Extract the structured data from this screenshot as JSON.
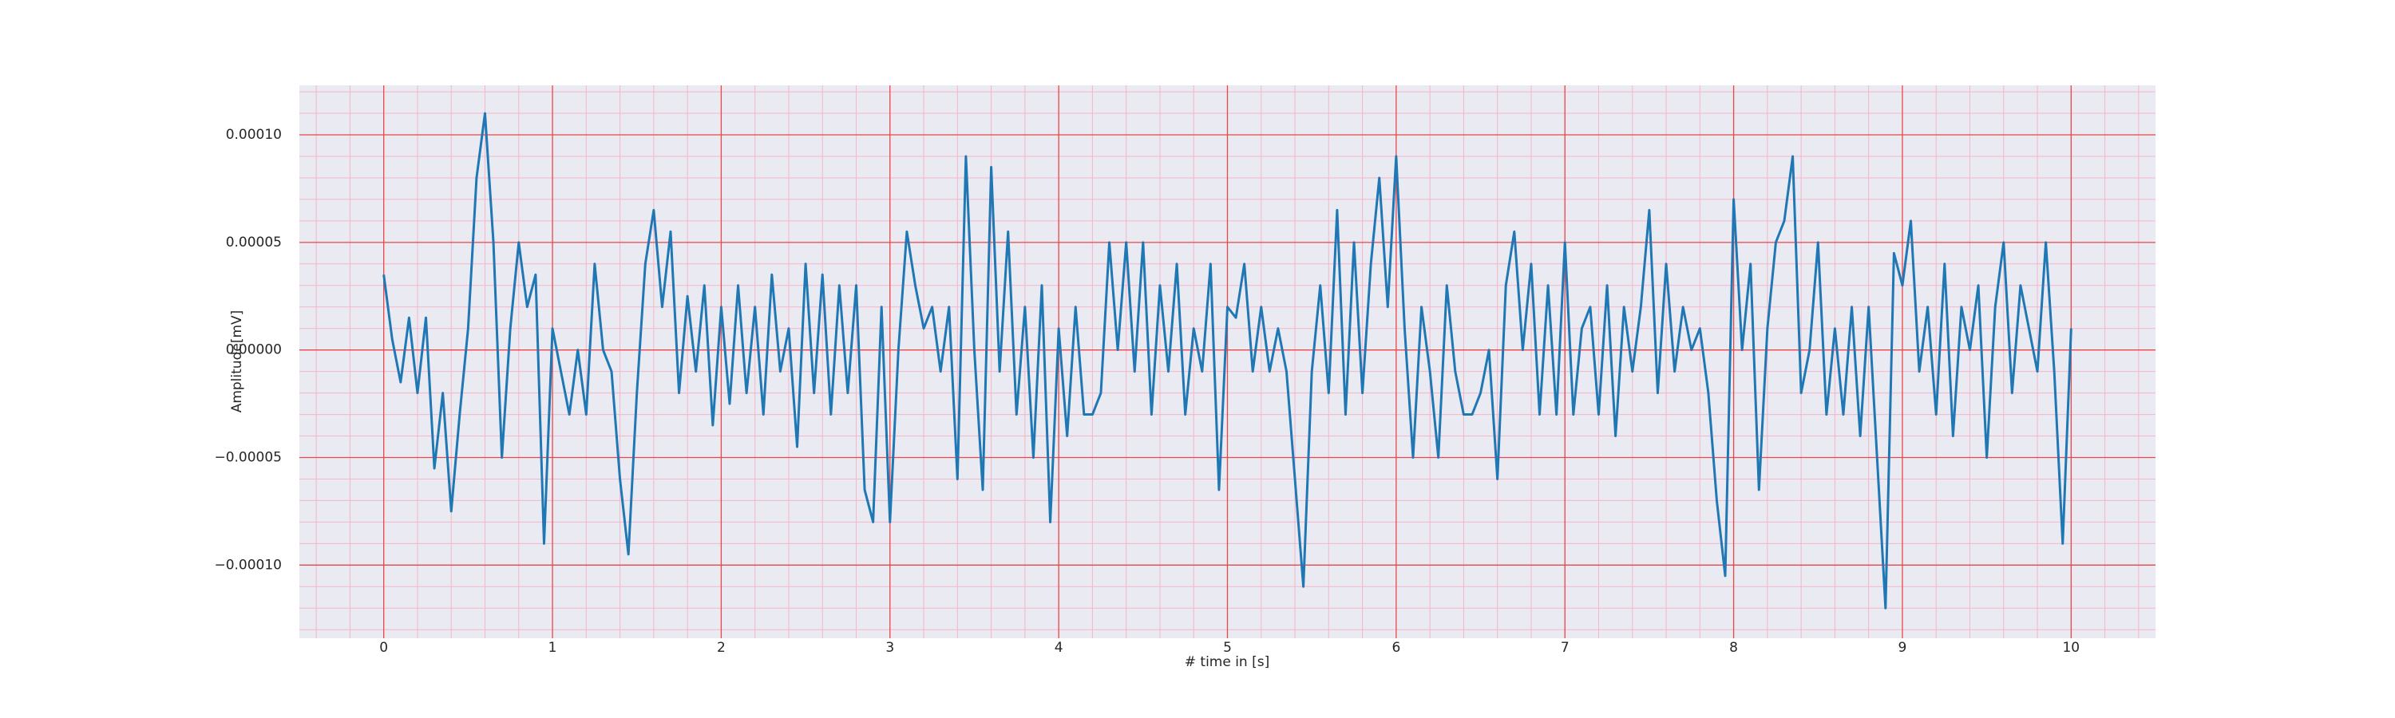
{
  "chart_data": {
    "type": "line",
    "x_label": "# time in [s]",
    "y_label": "Amplitude[mV]",
    "color": "#1f77b4",
    "grid": true,
    "minor_grid": true,
    "xlim": [
      -0.5,
      10.5
    ],
    "ylim": [
      -0.000134,
      0.000123
    ],
    "xticks": [
      0,
      1,
      2,
      3,
      4,
      5,
      6,
      7,
      8,
      9,
      10
    ],
    "yticks": [
      {
        "value": -0.0001,
        "label": "−0.00010"
      },
      {
        "value": -5e-05,
        "label": "−0.00005"
      },
      {
        "value": 0,
        "label": "0.00000"
      },
      {
        "value": 5e-05,
        "label": "0.00005"
      },
      {
        "value": 0.0001,
        "label": "0.00010"
      }
    ],
    "x": [
      0,
      0.05,
      0.1,
      0.15,
      0.2,
      0.25,
      0.3,
      0.35,
      0.4,
      0.45,
      0.5,
      0.55,
      0.6,
      0.65,
      0.7,
      0.75,
      0.8,
      0.85,
      0.9,
      0.95,
      1,
      1.05,
      1.1,
      1.15,
      1.2,
      1.25,
      1.3,
      1.35,
      1.4,
      1.45,
      1.5,
      1.55,
      1.6,
      1.65,
      1.7,
      1.75,
      1.8,
      1.85,
      1.9,
      1.95,
      2,
      2.05,
      2.1,
      2.15,
      2.2,
      2.25,
      2.3,
      2.35,
      2.4,
      2.45,
      2.5,
      2.55,
      2.6,
      2.65,
      2.7,
      2.75,
      2.8,
      2.85,
      2.9,
      2.95,
      3,
      3.05,
      3.1,
      3.15,
      3.2,
      3.25,
      3.3,
      3.35,
      3.4,
      3.45,
      3.5,
      3.55,
      3.6,
      3.65,
      3.7,
      3.75,
      3.8,
      3.85,
      3.9,
      3.95,
      4,
      4.05,
      4.1,
      4.15,
      4.2,
      4.25,
      4.3,
      4.35,
      4.4,
      4.45,
      4.5,
      4.55,
      4.6,
      4.65,
      4.7,
      4.75,
      4.8,
      4.85,
      4.9,
      4.95,
      5,
      5.05,
      5.1,
      5.15,
      5.2,
      5.25,
      5.3,
      5.35,
      5.4,
      5.45,
      5.5,
      5.55,
      5.6,
      5.65,
      5.7,
      5.75,
      5.8,
      5.85,
      5.9,
      5.95,
      6,
      6.05,
      6.1,
      6.15,
      6.2,
      6.25,
      6.3,
      6.35,
      6.4,
      6.45,
      6.5,
      6.55,
      6.6,
      6.65,
      6.7,
      6.75,
      6.8,
      6.85,
      6.9,
      6.95,
      7,
      7.05,
      7.1,
      7.15,
      7.2,
      7.25,
      7.3,
      7.35,
      7.4,
      7.45,
      7.5,
      7.55,
      7.6,
      7.65,
      7.7,
      7.75,
      7.8,
      7.85,
      7.9,
      7.95,
      8,
      8.05,
      8.1,
      8.15,
      8.2,
      8.25,
      8.3,
      8.35,
      8.4,
      8.45,
      8.5,
      8.55,
      8.6,
      8.65,
      8.7,
      8.75,
      8.8,
      8.85,
      8.9,
      8.95,
      9,
      9.05,
      9.1,
      9.15,
      9.2,
      9.25,
      9.3,
      9.35,
      9.4,
      9.45,
      9.5,
      9.55,
      9.6,
      9.65,
      9.7,
      9.75,
      9.8,
      9.85,
      9.9,
      9.95,
      10
    ],
    "values": [
      3.5e-05,
      5e-06,
      -1.5e-05,
      1.5e-05,
      -2e-05,
      1.5e-05,
      -5.5e-05,
      -2e-05,
      -7.5e-05,
      -3e-05,
      1e-05,
      8e-05,
      0.00011,
      5e-05,
      -5e-05,
      1e-05,
      5e-05,
      2e-05,
      3.5e-05,
      -9e-05,
      1e-05,
      -1e-05,
      -3e-05,
      0,
      -3e-05,
      4e-05,
      0,
      -1e-05,
      -6e-05,
      -9.5e-05,
      -2e-05,
      4e-05,
      6.5e-05,
      2e-05,
      5.5e-05,
      -2e-05,
      2.5e-05,
      -1e-05,
      3e-05,
      -3.5e-05,
      2e-05,
      -2.5e-05,
      3e-05,
      -2e-05,
      2e-05,
      -3e-05,
      3.5e-05,
      -1e-05,
      1e-05,
      -4.5e-05,
      4e-05,
      -2e-05,
      3.5e-05,
      -3e-05,
      3e-05,
      -2e-05,
      3e-05,
      -6.5e-05,
      -8e-05,
      2e-05,
      -8e-05,
      0,
      5.5e-05,
      3e-05,
      1e-05,
      2e-05,
      -1e-05,
      2e-05,
      -6e-05,
      9e-05,
      0,
      -6.5e-05,
      8.5e-05,
      -1e-05,
      5.5e-05,
      -3e-05,
      2e-05,
      -5e-05,
      3e-05,
      -8e-05,
      1e-05,
      -4e-05,
      2e-05,
      -3e-05,
      -3e-05,
      -2e-05,
      5e-05,
      0,
      5e-05,
      -1e-05,
      5e-05,
      -3e-05,
      3e-05,
      -1e-05,
      4e-05,
      -3e-05,
      1e-05,
      -1e-05,
      4e-05,
      -6.5e-05,
      2e-05,
      1.5e-05,
      4e-05,
      -1e-05,
      2e-05,
      -1e-05,
      1e-05,
      -1e-05,
      -6e-05,
      -0.00011,
      -1e-05,
      3e-05,
      -2e-05,
      6.5e-05,
      -3e-05,
      5e-05,
      -2e-05,
      4e-05,
      8e-05,
      2e-05,
      9e-05,
      1e-05,
      -5e-05,
      2e-05,
      -1e-05,
      -5e-05,
      3e-05,
      -1e-05,
      -3e-05,
      -3e-05,
      -2e-05,
      0,
      -6e-05,
      3e-05,
      5.5e-05,
      0,
      4e-05,
      -3e-05,
      3e-05,
      -3e-05,
      5e-05,
      -3e-05,
      1e-05,
      2e-05,
      -3e-05,
      3e-05,
      -4e-05,
      2e-05,
      -1e-05,
      2e-05,
      6.5e-05,
      -2e-05,
      4e-05,
      -1e-05,
      2e-05,
      0,
      1e-05,
      -2e-05,
      -7e-05,
      -0.000105,
      7e-05,
      0,
      4e-05,
      -6.5e-05,
      1e-05,
      5e-05,
      6e-05,
      9e-05,
      -2e-05,
      0,
      5e-05,
      -3e-05,
      1e-05,
      -3e-05,
      2e-05,
      -4e-05,
      2e-05,
      -5e-05,
      -0.00012,
      4.5e-05,
      3e-05,
      6e-05,
      -1e-05,
      2e-05,
      -3e-05,
      4e-05,
      -4e-05,
      2e-05,
      0,
      3e-05,
      -5e-05,
      2e-05,
      5e-05,
      -2e-05,
      3e-05,
      1e-05,
      -1e-05,
      5e-05,
      -1e-05,
      -9e-05,
      1e-05
    ]
  }
}
